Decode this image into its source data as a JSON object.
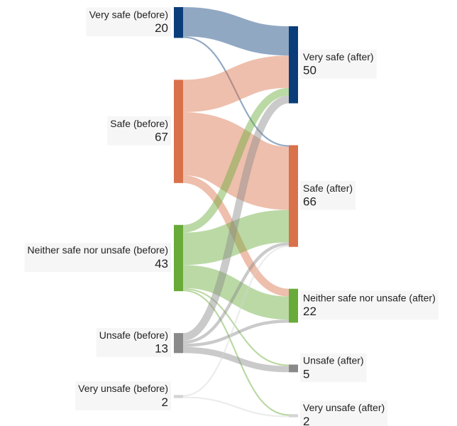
{
  "chart_data": {
    "type": "sankey",
    "left_nodes": [
      {
        "label": "Very safe (before)",
        "value": 20,
        "color": "#0b3d7a"
      },
      {
        "label": "Safe (before)",
        "value": 67,
        "color": "#d9714a"
      },
      {
        "label": "Neither safe nor unsafe (before)",
        "value": 43,
        "color": "#68ab38"
      },
      {
        "label": "Unsafe (before)",
        "value": 13,
        "color": "#8a8a8a"
      },
      {
        "label": "Very unsafe (before)",
        "value": 2,
        "color": "#d4d4d4"
      }
    ],
    "right_nodes": [
      {
        "label": "Very safe (after)",
        "value": 50,
        "color": "#0b3d7a"
      },
      {
        "label": "Safe (after)",
        "value": 66,
        "color": "#d9714a"
      },
      {
        "label": "Neither safe nor unsafe (after)",
        "value": 22,
        "color": "#68ab38"
      },
      {
        "label": "Unsafe (after)",
        "value": 5,
        "color": "#8a8a8a"
      },
      {
        "label": "Very unsafe (after)",
        "value": 2,
        "color": "#d4d4d4"
      }
    ],
    "links": [
      {
        "source": 0,
        "target": 0,
        "value": 19
      },
      {
        "source": 0,
        "target": 1,
        "value": 1
      },
      {
        "source": 1,
        "target": 0,
        "value": 21
      },
      {
        "source": 1,
        "target": 1,
        "value": 41
      },
      {
        "source": 1,
        "target": 2,
        "value": 5
      },
      {
        "source": 2,
        "target": 0,
        "value": 5
      },
      {
        "source": 2,
        "target": 1,
        "value": 21
      },
      {
        "source": 2,
        "target": 2,
        "value": 15
      },
      {
        "source": 2,
        "target": 3,
        "value": 1
      },
      {
        "source": 2,
        "target": 4,
        "value": 1
      },
      {
        "source": 3,
        "target": 0,
        "value": 5
      },
      {
        "source": 3,
        "target": 1,
        "value": 2
      },
      {
        "source": 3,
        "target": 2,
        "value": 2
      },
      {
        "source": 3,
        "target": 3,
        "value": 4
      },
      {
        "source": 4,
        "target": 1,
        "value": 1
      },
      {
        "source": 4,
        "target": 4,
        "value": 1
      }
    ]
  }
}
